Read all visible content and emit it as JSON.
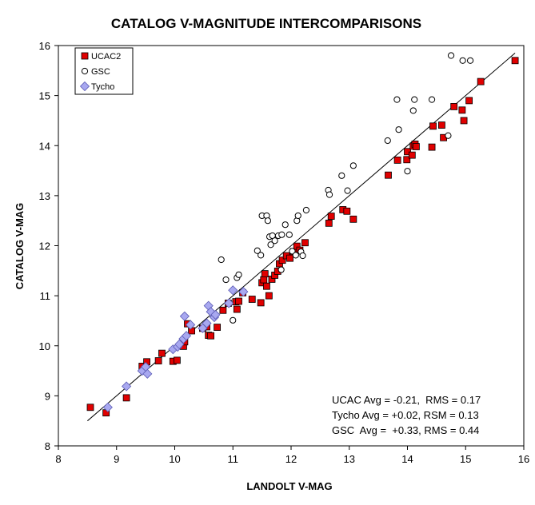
{
  "chart_data": {
    "type": "scatter",
    "title": "CATALOG V-MAGNITUDE INTERCOMPARISONS",
    "xlabel": "LANDOLT V-MAG",
    "ylabel": "CATALOG V-MAG",
    "xlim": [
      8,
      16
    ],
    "ylim": [
      8,
      16
    ],
    "x_ticks": [
      "8",
      "9",
      "10",
      "11",
      "12",
      "13",
      "14",
      "15",
      "16"
    ],
    "y_ticks": [
      "8",
      "9",
      "10",
      "11",
      "12",
      "13",
      "14",
      "15",
      "16"
    ],
    "grid": false,
    "legend_position": "top-left",
    "reference_line": {
      "x": [
        8.5,
        15.85
      ],
      "y": [
        8.5,
        15.85
      ]
    },
    "stats": [
      "UCAC Avg = -0.21,  RMS = 0.17",
      "Tycho Avg = +0.02, RSM = 0.13",
      "GSC  Avg =  +0.33, RMS = 0.44"
    ],
    "series": [
      {
        "name": "UCAC2",
        "marker": "square",
        "color": "#e00000",
        "points": [
          [
            8.55,
            8.77
          ],
          [
            8.82,
            8.66
          ],
          [
            9.17,
            8.96
          ],
          [
            9.44,
            9.59
          ],
          [
            9.52,
            9.68
          ],
          [
            9.72,
            9.7
          ],
          [
            9.78,
            9.85
          ],
          [
            9.97,
            9.69
          ],
          [
            10.04,
            9.71
          ],
          [
            10.15,
            9.99
          ],
          [
            10.17,
            10.08
          ],
          [
            10.22,
            10.44
          ],
          [
            10.29,
            10.3
          ],
          [
            10.48,
            10.35
          ],
          [
            10.55,
            10.38
          ],
          [
            10.58,
            10.21
          ],
          [
            10.62,
            10.2
          ],
          [
            10.73,
            10.37
          ],
          [
            10.83,
            10.71
          ],
          [
            10.92,
            10.85
          ],
          [
            11.05,
            10.88
          ],
          [
            11.07,
            10.73
          ],
          [
            11.1,
            10.89
          ],
          [
            11.17,
            11.06
          ],
          [
            11.33,
            10.93
          ],
          [
            11.48,
            10.86
          ],
          [
            11.5,
            11.26
          ],
          [
            11.53,
            11.32
          ],
          [
            11.55,
            11.44
          ],
          [
            11.58,
            11.19
          ],
          [
            11.62,
            11.0
          ],
          [
            11.67,
            11.33
          ],
          [
            11.72,
            11.41
          ],
          [
            11.77,
            11.49
          ],
          [
            11.8,
            11.64
          ],
          [
            11.85,
            11.71
          ],
          [
            11.92,
            11.8
          ],
          [
            11.98,
            11.75
          ],
          [
            12.04,
            11.88
          ],
          [
            12.1,
            11.99
          ],
          [
            12.15,
            11.91
          ],
          [
            12.24,
            12.06
          ],
          [
            12.65,
            12.45
          ],
          [
            12.69,
            12.59
          ],
          [
            12.89,
            12.72
          ],
          [
            12.96,
            12.69
          ],
          [
            13.07,
            12.53
          ],
          [
            13.67,
            13.41
          ],
          [
            13.83,
            13.71
          ],
          [
            13.99,
            13.72
          ],
          [
            14.0,
            13.88
          ],
          [
            14.08,
            13.81
          ],
          [
            14.1,
            13.99
          ],
          [
            14.13,
            14.03
          ],
          [
            14.15,
            13.98
          ],
          [
            14.42,
            13.97
          ],
          [
            14.44,
            14.39
          ],
          [
            14.59,
            14.41
          ],
          [
            14.62,
            14.16
          ],
          [
            14.8,
            14.78
          ],
          [
            14.94,
            14.71
          ],
          [
            14.97,
            14.5
          ],
          [
            15.06,
            14.9
          ],
          [
            15.26,
            15.28
          ],
          [
            15.85,
            15.7
          ]
        ]
      },
      {
        "name": "GSC",
        "marker": "circle",
        "color": "#000000",
        "points": [
          [
            10.8,
            11.72
          ],
          [
            10.88,
            11.32
          ],
          [
            11.0,
            10.51
          ],
          [
            11.07,
            11.36
          ],
          [
            11.1,
            11.42
          ],
          [
            11.48,
            11.81
          ],
          [
            11.42,
            11.9
          ],
          [
            11.5,
            12.6
          ],
          [
            11.58,
            12.6
          ],
          [
            11.6,
            12.5
          ],
          [
            11.63,
            12.18
          ],
          [
            11.68,
            12.2
          ],
          [
            11.72,
            12.1
          ],
          [
            11.65,
            12.02
          ],
          [
            11.78,
            12.2
          ],
          [
            11.84,
            12.22
          ],
          [
            11.9,
            12.42
          ],
          [
            11.97,
            12.22
          ],
          [
            11.83,
            11.52
          ],
          [
            12.02,
            11.89
          ],
          [
            12.08,
            11.81
          ],
          [
            12.1,
            12.5
          ],
          [
            12.12,
            12.6
          ],
          [
            12.17,
            11.88
          ],
          [
            12.2,
            11.8
          ],
          [
            12.26,
            12.71
          ],
          [
            12.64,
            13.11
          ],
          [
            12.66,
            13.02
          ],
          [
            12.87,
            13.4
          ],
          [
            12.97,
            13.1
          ],
          [
            13.07,
            13.6
          ],
          [
            13.66,
            14.1
          ],
          [
            13.82,
            14.92
          ],
          [
            13.85,
            14.32
          ],
          [
            14.0,
            13.49
          ],
          [
            14.1,
            14.7
          ],
          [
            14.12,
            14.92
          ],
          [
            14.42,
            14.92
          ],
          [
            14.7,
            14.2
          ],
          [
            14.75,
            15.8
          ],
          [
            14.95,
            15.7
          ],
          [
            15.08,
            15.7
          ]
        ]
      },
      {
        "name": "Tycho",
        "marker": "diamond",
        "color": "#a8a8f0",
        "points": [
          [
            8.85,
            8.77
          ],
          [
            9.17,
            9.19
          ],
          [
            9.44,
            9.5
          ],
          [
            9.53,
            9.44
          ],
          [
            9.5,
            9.58
          ],
          [
            9.97,
            9.93
          ],
          [
            10.05,
            9.98
          ],
          [
            10.08,
            10.03
          ],
          [
            10.15,
            10.14
          ],
          [
            10.2,
            10.2
          ],
          [
            10.17,
            10.59
          ],
          [
            10.27,
            10.42
          ],
          [
            10.48,
            10.35
          ],
          [
            10.55,
            10.45
          ],
          [
            10.58,
            10.8
          ],
          [
            10.62,
            10.68
          ],
          [
            10.68,
            10.57
          ],
          [
            10.7,
            10.62
          ],
          [
            10.93,
            10.85
          ],
          [
            11.0,
            11.11
          ],
          [
            11.18,
            11.08
          ]
        ]
      }
    ]
  }
}
